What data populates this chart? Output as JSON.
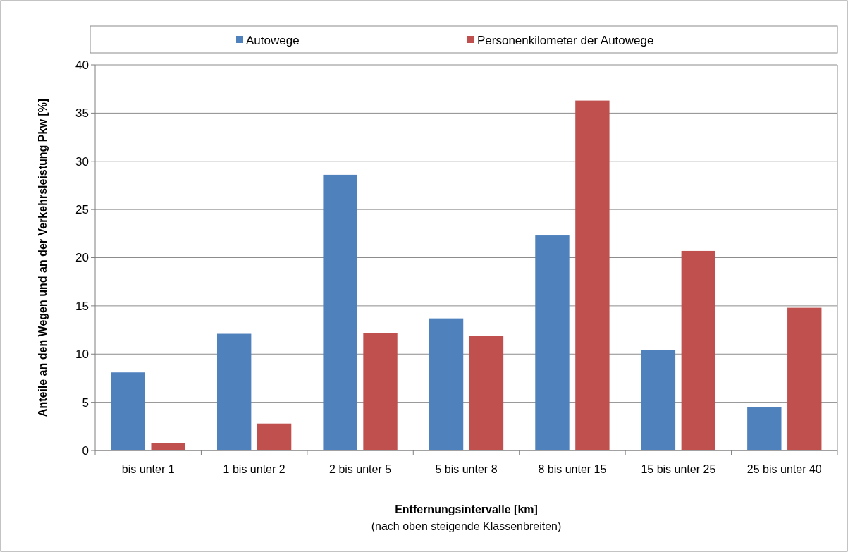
{
  "chart_data": {
    "type": "bar",
    "xlabel": "Entfernungsintervalle [km]",
    "ylabel": "Anteile an den Wegen und an der Verkehrsleistung Pkw [%]",
    "annotations": [
      "(nach oben steigende Klassenbreiten)"
    ],
    "categories": [
      "bis unter 1",
      "1 bis unter 2",
      "2 bis unter 5",
      "5 bis unter 8",
      "8 bis unter 15",
      "15 bis unter 25",
      "25 bis unter 40"
    ],
    "series": [
      {
        "name": "Autowege",
        "color": "#4f81bd",
        "values": [
          8.1,
          12.1,
          28.6,
          13.7,
          22.3,
          10.4,
          4.5
        ]
      },
      {
        "name": "Personenkilometer der Autowege",
        "color": "#c0504d",
        "values": [
          0.8,
          2.8,
          12.2,
          11.9,
          36.3,
          20.7,
          14.8
        ]
      }
    ],
    "ylim": [
      0,
      40
    ],
    "yticks": [
      0,
      5,
      10,
      15,
      20,
      25,
      30,
      35,
      40
    ],
    "grid": "y",
    "legend": "top"
  }
}
